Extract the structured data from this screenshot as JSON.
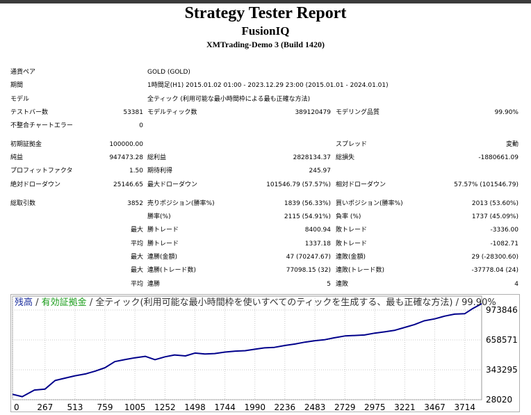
{
  "report": {
    "title": "Strategy Tester Report",
    "expert": "FusionIQ",
    "server": "XMTrading-Demo 3 (Build 1420)"
  },
  "settings": {
    "symbol_label": "通貨ペア",
    "symbol_value": "GOLD (GOLD)",
    "period_label": "期間",
    "period_value": "1時間足(H1) 2015.01.02 01:00 - 2023.12.29 23:00 (2015.01.01 - 2024.01.01)",
    "model_label": "モデル",
    "model_value": "全ティック (利用可能な最小時間枠による最も正確な方法)",
    "bars_label": "テストバー数",
    "bars_value": "53381",
    "ticks_label": "モデルティック数",
    "ticks_value": "389120479",
    "quality_label": "モデリング品質",
    "quality_value": "99.90%",
    "errors_label": "不整合チャートエラー",
    "errors_value": "0"
  },
  "results": {
    "deposit_label": "初期証拠金",
    "deposit_value": "100000.00",
    "spread_label": "スプレッド",
    "spread_value": "変動",
    "net_label": "純益",
    "net_value": "947473.28",
    "gross_profit_label": "総利益",
    "gross_profit_value": "2828134.37",
    "gross_loss_label": "総損失",
    "gross_loss_value": "-1880661.09",
    "pf_label": "プロフィットファクタ",
    "pf_value": "1.50",
    "payoff_label": "期待利得",
    "payoff_value": "245.97",
    "abs_dd_label": "絶対ドローダウン",
    "abs_dd_value": "25146.65",
    "max_dd_label": "最大ドローダウン",
    "max_dd_value": "101546.79 (57.57%)",
    "rel_dd_label": "相対ドローダウン",
    "rel_dd_value": "57.57% (101546.79)",
    "trades_label": "総取引数",
    "trades_value": "3852",
    "short_label": "売りポジション(勝率%)",
    "short_value": "1839 (56.33%)",
    "long_label": "買いポジション(勝率%)",
    "long_value": "2013 (53.60%)",
    "win_label": "勝率(%)",
    "win_value": "2115 (54.91%)",
    "loss_label": "負率 (%)",
    "loss_value": "1737 (45.09%)",
    "max_word": "最大",
    "avg_word": "平均",
    "largest_win_label": "勝トレード",
    "largest_win_value": "8400.94",
    "largest_loss_label": "敗トレード",
    "largest_loss_value": "-3336.00",
    "avg_win_label": "勝トレード",
    "avg_win_value": "1337.18",
    "avg_loss_label": "敗トレード",
    "avg_loss_value": "-1082.71",
    "max_cons_wins_label": "連勝(金額)",
    "max_cons_wins_value": "47 (70247.67)",
    "max_cons_losses_label": "連敗(金額)",
    "max_cons_losses_value": "29 (-28300.60)",
    "max_cons_profit_label": "連勝(トレード数)",
    "max_cons_profit_value": "77098.15 (32)",
    "max_cons_loss_label": "連敗(トレード数)",
    "max_cons_loss_value": "-37778.04 (24)",
    "avg_cons_wins_label": "連勝",
    "avg_cons_wins_value": "5",
    "avg_cons_losses_label": "連敗",
    "avg_cons_losses_value": "4"
  },
  "chart_data": {
    "type": "line",
    "legend": {
      "balance": "残高",
      "sep1": " / ",
      "equity": "有効証拠金",
      "rest": " / 全ティック(利用可能な最小時間枠を使いすべてのティックを生成する、最も正確な方法) / 99.90%"
    },
    "colors": {
      "balance": "#1c2f9e",
      "equity": "#1c9e1c",
      "line": "#00008b",
      "grid": "#c8c8c8"
    },
    "x_ticks": [
      0,
      267,
      513,
      759,
      1005,
      1252,
      1498,
      1744,
      1990,
      2236,
      2483,
      2729,
      2975,
      3221,
      3467,
      3714
    ],
    "y_ticks": [
      28020,
      343295,
      658571,
      973846
    ],
    "xlim": [
      0,
      3852
    ],
    "ylim": [
      28020,
      1120000
    ],
    "series": [
      {
        "x": [
          0,
          80,
          180,
          267,
          350,
          430,
          513,
          600,
          680,
          759,
          840,
          920,
          1005,
          1090,
          1170,
          1252,
          1330,
          1420,
          1498,
          1580,
          1660,
          1744,
          1830,
          1910,
          1990,
          2070,
          2150,
          2236,
          2320,
          2400,
          2483,
          2560,
          2640,
          2729,
          2810,
          2890,
          2975,
          3060,
          3140,
          3221,
          3300,
          3380,
          3467,
          3550,
          3630,
          3714,
          3780,
          3852
        ],
        "y": [
          85000,
          60000,
          130000,
          140000,
          230000,
          255000,
          280000,
          300000,
          330000,
          365000,
          430000,
          450000,
          470000,
          485000,
          450000,
          480000,
          500000,
          490000,
          520000,
          510000,
          515000,
          530000,
          540000,
          545000,
          560000,
          575000,
          580000,
          600000,
          615000,
          635000,
          650000,
          660000,
          680000,
          700000,
          705000,
          710000,
          730000,
          745000,
          760000,
          790000,
          820000,
          860000,
          880000,
          910000,
          930000,
          935000,
          990000,
          1040000
        ]
      }
    ]
  }
}
